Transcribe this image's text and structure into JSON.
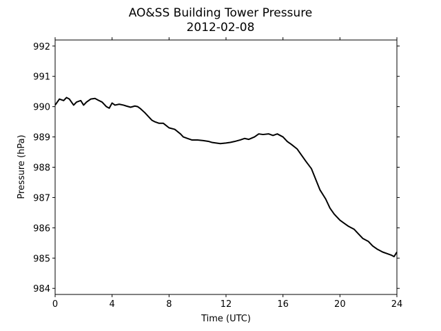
{
  "chart_data": {
    "type": "line",
    "title": "AO&SS Building Tower Pressure",
    "subtitle": "2012-02-08",
    "xlabel": "Time (UTC)",
    "ylabel": "Pressure (hPa)",
    "xlim": [
      0,
      24
    ],
    "ylim": [
      983.8,
      992.2
    ],
    "xticks": [
      0,
      4,
      8,
      12,
      16,
      20,
      24
    ],
    "yticks": [
      984,
      985,
      986,
      987,
      988,
      989,
      990,
      991,
      992
    ],
    "grid": false,
    "line_color": "#000000",
    "series": [
      {
        "x": [
          0.0,
          0.3,
          0.6,
          0.8,
          1.0,
          1.3,
          1.5,
          1.8,
          2.0,
          2.2,
          2.5,
          2.8,
          3.0,
          3.3,
          3.6,
          3.8,
          4.0,
          4.2,
          4.5,
          4.8,
          5.0,
          5.3,
          5.6,
          5.8,
          6.0,
          6.3,
          6.6,
          6.8,
          7.0,
          7.3,
          7.6,
          8.0,
          8.4,
          8.8,
          9.0,
          9.3,
          9.6,
          10.0,
          10.4,
          10.8,
          11.0,
          11.3,
          11.6,
          12.0,
          12.3,
          12.6,
          13.0,
          13.3,
          13.6,
          14.0,
          14.3,
          14.6,
          15.0,
          15.3,
          15.6,
          16.0,
          16.3,
          16.6,
          17.0,
          17.3,
          17.6,
          18.0,
          18.3,
          18.6,
          19.0,
          19.3,
          19.6,
          20.0,
          20.3,
          20.6,
          21.0,
          21.3,
          21.6,
          22.0,
          22.3,
          22.6,
          23.0,
          23.3,
          23.6,
          23.8,
          24.0
        ],
        "y": [
          990.05,
          990.25,
          990.2,
          990.3,
          990.25,
          990.05,
          990.15,
          990.2,
          990.05,
          990.15,
          990.25,
          990.27,
          990.22,
          990.15,
          990.0,
          989.95,
          990.12,
          990.05,
          990.08,
          990.05,
          990.02,
          989.98,
          990.02,
          990.0,
          989.93,
          989.8,
          989.65,
          989.55,
          989.5,
          989.45,
          989.45,
          989.3,
          989.25,
          989.1,
          989.0,
          988.95,
          988.9,
          988.9,
          988.88,
          988.85,
          988.82,
          988.8,
          988.78,
          988.8,
          988.82,
          988.85,
          988.9,
          988.95,
          988.92,
          989.0,
          989.1,
          989.08,
          989.1,
          989.05,
          989.1,
          989.0,
          988.85,
          988.75,
          988.6,
          988.4,
          988.2,
          987.95,
          987.6,
          987.25,
          986.95,
          986.65,
          986.45,
          986.25,
          986.15,
          986.05,
          985.95,
          985.8,
          985.65,
          985.55,
          985.4,
          985.3,
          985.2,
          985.15,
          985.1,
          985.05,
          985.2
        ]
      }
    ]
  }
}
